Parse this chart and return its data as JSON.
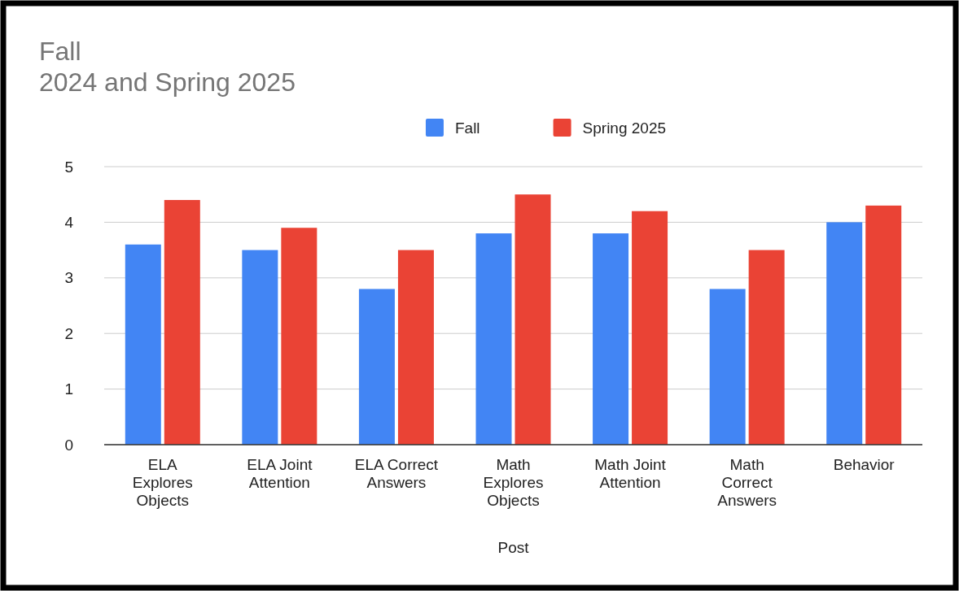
{
  "chart_data": {
    "type": "bar",
    "title": "Fall\n2024 and Spring 2025",
    "xlabel": "Post",
    "categories": [
      "ELA Explores Objects",
      "ELA Joint Attention",
      "ELA Correct Answers",
      "Math Explores Objects",
      "Math Joint Attention",
      "Math Correct Answers",
      "Behavior"
    ],
    "series": [
      {
        "name": "Fall",
        "color": "#4285f4",
        "values": [
          3.6,
          3.5,
          2.8,
          3.8,
          3.8,
          2.8,
          4.0
        ]
      },
      {
        "name": "Spring 2025",
        "color": "#ea4335",
        "values": [
          4.4,
          3.9,
          3.5,
          4.5,
          4.2,
          3.5,
          4.3
        ]
      }
    ],
    "ylim": [
      0,
      5
    ],
    "yticks": [
      0,
      1,
      2,
      3,
      4,
      5
    ],
    "grid": "y",
    "legend": "top"
  }
}
